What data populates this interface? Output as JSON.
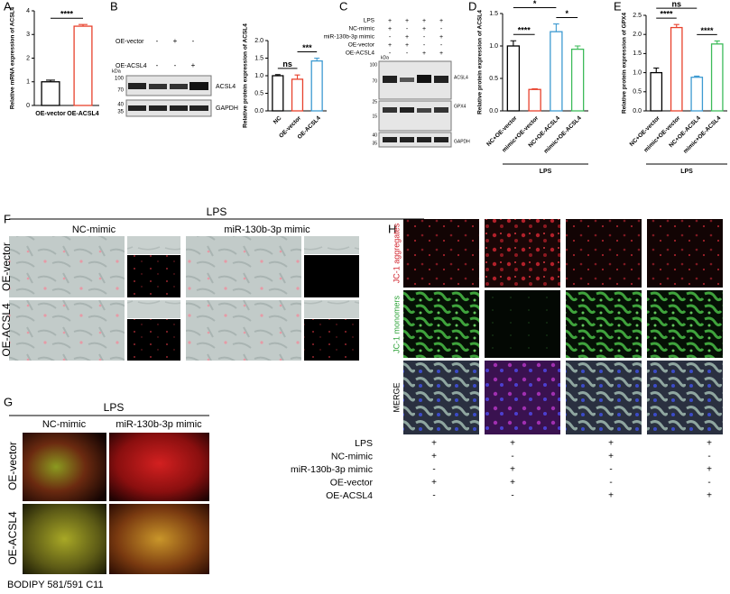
{
  "panel_labels": [
    "A",
    "B",
    "C",
    "D",
    "E",
    "F",
    "G",
    "H"
  ],
  "chart_data": [
    {
      "type": "bar",
      "y_label": "Relative mRNA expression of ACSL4",
      "categories": [
        "OE-vector",
        "OE-ACSL4"
      ],
      "values": [
        1.0,
        3.35
      ],
      "errors": [
        0.07,
        0.07
      ],
      "colors": [
        "#000000",
        "#e8412c"
      ],
      "ylim": [
        0,
        4
      ],
      "yticks": [
        0,
        1,
        2,
        3,
        4
      ],
      "annotations": [
        {
          "text": "****",
          "between": [
            "OE-vector",
            "OE-ACSL4"
          ]
        }
      ]
    },
    {
      "type": "bar",
      "y_label": "Relative protein expression of ACSL4",
      "categories": [
        "NC",
        "OE-vector",
        "OE-ACSL4"
      ],
      "values": [
        1.0,
        0.9,
        1.42
      ],
      "errors": [
        0.03,
        0.12,
        0.08
      ],
      "colors": [
        "#000000",
        "#e8412c",
        "#3d9ad1"
      ],
      "ylim": [
        0,
        2
      ],
      "yticks": [
        {
          "value": 0,
          "label": "0.0"
        },
        0.5,
        {
          "value": 1,
          "label": "1.0"
        },
        1.5,
        {
          "value": 2,
          "label": "2.0"
        }
      ],
      "annotations": [
        {
          "text": "ns",
          "between": [
            "NC",
            "OE-vector"
          ]
        },
        {
          "text": "***",
          "between": [
            "OE-vector",
            "OE-ACSL4"
          ]
        }
      ]
    },
    {
      "type": "bar",
      "y_label": "Relative protein expression of ACSL4",
      "categories": [
        "NC+OE-vector",
        "mimic+OE-vector",
        "NC+OE-ACSL4",
        "mimic+OE-ACSL4"
      ],
      "values": [
        1.0,
        0.33,
        1.22,
        0.95
      ],
      "errors": [
        0.08,
        0.01,
        0.12,
        0.05
      ],
      "colors": [
        "#000000",
        "#e8412c",
        "#3d9ad1",
        "#3dbb5a"
      ],
      "ylim": [
        0,
        1.5
      ],
      "yticks": [
        {
          "value": 0,
          "label": "0.0"
        },
        0.5,
        {
          "value": 1,
          "label": "1.0"
        },
        1.5
      ],
      "annotations": [
        {
          "text": "****",
          "between": [
            "NC+OE-vector",
            "mimic+OE-vector"
          ]
        },
        {
          "text": "*",
          "between": [
            "NC+OE-ACSL4",
            "mimic+OE-ACSL4"
          ]
        },
        {
          "text": "*",
          "between": [
            "NC+OE-vector",
            "NC+OE-ACSL4"
          ]
        }
      ],
      "group_label": "LPS"
    },
    {
      "type": "bar",
      "y_label": "Relative protein expression of GPX4",
      "categories": [
        "NC+OE-vector",
        "mimic+OE-vector",
        "NC+OE-ACSL4",
        "mimic+OE-ACSL4"
      ],
      "values": [
        1.0,
        2.18,
        0.88,
        1.75
      ],
      "errors": [
        0.12,
        0.08,
        0.03,
        0.08
      ],
      "colors": [
        "#000000",
        "#e8412c",
        "#3d9ad1",
        "#3dbb5a"
      ],
      "ylim": [
        0,
        2.5
      ],
      "yticks": [
        {
          "value": 0,
          "label": "0.0"
        },
        0.5,
        {
          "value": 1,
          "label": "1.0"
        },
        1.5,
        {
          "value": 2,
          "label": "2.0"
        },
        2.5
      ],
      "annotations": [
        {
          "text": "****",
          "between": [
            "NC+OE-vector",
            "mimic+OE-vector"
          ]
        },
        {
          "text": "****",
          "between": [
            "NC+OE-ACSL4",
            "mimic+OE-ACSL4"
          ]
        },
        {
          "text": "ns",
          "between": [
            "NC+OE-vector",
            "NC+OE-ACSL4"
          ]
        }
      ],
      "group_label": "LPS"
    }
  ],
  "blot_B": {
    "rows": [
      {
        "label": "OE-vector",
        "signs": [
          "-",
          "+",
          "-"
        ]
      },
      {
        "label": "OE-ACSL4",
        "signs": [
          "-",
          "-",
          "+"
        ]
      }
    ],
    "unit": "kDa",
    "markers": [
      "100",
      "70",
      "40",
      "35"
    ],
    "bands": [
      "ACSL4",
      "GAPDH"
    ]
  },
  "blot_C": {
    "rows": [
      {
        "label": "LPS",
        "signs": [
          "+",
          "+",
          "+",
          "+"
        ]
      },
      {
        "label": "NC-mimic",
        "signs": [
          "+",
          "-",
          "+",
          "-"
        ]
      },
      {
        "label": "miR-130b-3p mimic",
        "signs": [
          "-",
          "+",
          "-",
          "+"
        ]
      },
      {
        "label": "OE-vector",
        "signs": [
          "+",
          "+",
          "-",
          "-"
        ]
      },
      {
        "label": "OE-ACSL4",
        "signs": [
          "-",
          "-",
          "+",
          "+"
        ]
      }
    ],
    "unit": "kDa",
    "markers": [
      "100",
      "70",
      "25",
      "15",
      "40",
      "35"
    ],
    "bands": [
      "ACSL4",
      "GPX4",
      "GAPDH"
    ]
  },
  "panel_F": {
    "group": "LPS",
    "columns": [
      "NC-mimic",
      "miR-130b-3p mimic"
    ],
    "rows": [
      "OE-vector",
      "OE-ACSL4"
    ]
  },
  "panel_G": {
    "group": "LPS",
    "columns": [
      "NC-mimic",
      "miR-130b-3p mimic"
    ],
    "rows": [
      "OE-vector",
      "OE-ACSL4"
    ],
    "stain": "BODIPY 581/591 C11"
  },
  "panel_H": {
    "rows": [
      "JC-1 aggregates",
      "JC-1 monomers",
      "MERGE"
    ],
    "conditions": [
      {
        "label": "LPS",
        "signs": [
          "+",
          "+",
          "+",
          "+"
        ]
      },
      {
        "label": "NC-mimic",
        "signs": [
          "+",
          "-",
          "+",
          "-"
        ]
      },
      {
        "label": "miR-130b-3p mimic",
        "signs": [
          "-",
          "+",
          "-",
          "+"
        ]
      },
      {
        "label": "OE-vector",
        "signs": [
          "+",
          "+",
          "-",
          "-"
        ]
      },
      {
        "label": "OE-ACSL4",
        "signs": [
          "-",
          "-",
          "+",
          "+"
        ]
      }
    ]
  }
}
